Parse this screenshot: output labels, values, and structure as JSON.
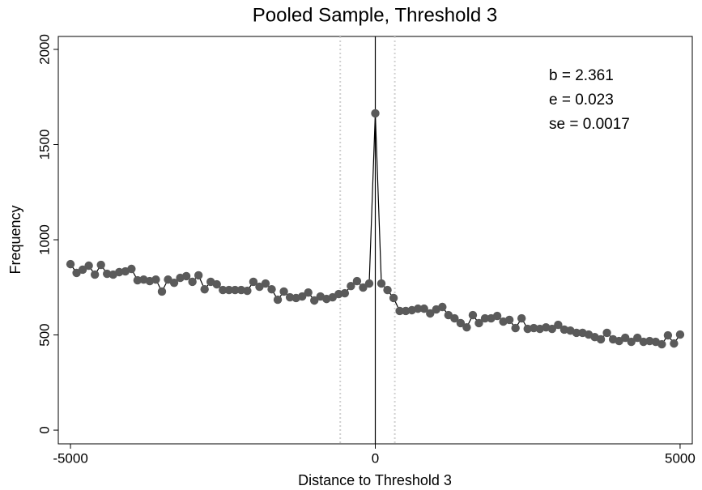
{
  "chart_data": {
    "type": "line",
    "title": "Pooled Sample, Threshold 3",
    "xlabel": "Distance to Threshold 3",
    "ylabel": "Frequency",
    "x": [
      -5000,
      -4900,
      -4800,
      -4700,
      -4600,
      -4500,
      -4400,
      -4300,
      -4200,
      -4100,
      -4000,
      -3900,
      -3800,
      -3700,
      -3600,
      -3500,
      -3400,
      -3300,
      -3200,
      -3100,
      -3000,
      -2900,
      -2800,
      -2700,
      -2600,
      -2500,
      -2400,
      -2300,
      -2200,
      -2100,
      -2000,
      -1900,
      -1800,
      -1700,
      -1600,
      -1500,
      -1400,
      -1300,
      -1200,
      -1100,
      -1000,
      -900,
      -800,
      -700,
      -600,
      -500,
      -400,
      -300,
      -200,
      -100,
      0,
      100,
      200,
      300,
      400,
      500,
      600,
      700,
      800,
      900,
      1000,
      1100,
      1200,
      1300,
      1400,
      1500,
      1600,
      1700,
      1800,
      1900,
      2000,
      2100,
      2200,
      2300,
      2400,
      2500,
      2600,
      2700,
      2800,
      2900,
      3000,
      3100,
      3200,
      3300,
      3400,
      3500,
      3600,
      3700,
      3800,
      3900,
      4000,
      4100,
      4200,
      4300,
      4400,
      4500,
      4600,
      4700,
      4800,
      4900,
      5000
    ],
    "series": [
      {
        "name": "Frequency",
        "color": "#5a5a5a",
        "line_color": "#000000",
        "values": [
          872,
          826,
          843,
          864,
          817,
          868,
          821,
          817,
          830,
          834,
          847,
          787,
          791,
          783,
          791,
          728,
          791,
          774,
          800,
          809,
          779,
          813,
          740,
          779,
          766,
          736,
          736,
          736,
          736,
          732,
          779,
          753,
          770,
          740,
          685,
          728,
          698,
          694,
          702,
          723,
          681,
          702,
          689,
          698,
          715,
          719,
          757,
          783,
          749,
          770,
          1664,
          770,
          736,
          694,
          626,
          626,
          630,
          638,
          638,
          613,
          634,
          647,
          604,
          587,
          562,
          540,
          604,
          562,
          587,
          587,
          600,
          570,
          579,
          536,
          587,
          532,
          536,
          532,
          540,
          532,
          553,
          528,
          523,
          511,
          511,
          502,
          489,
          477,
          511,
          477,
          468,
          485,
          464,
          485,
          464,
          468,
          464,
          451,
          498,
          455,
          502
        ]
      }
    ],
    "xlim": [
      -5200,
      5200
    ],
    "ylim": [
      -72,
      2068
    ],
    "xticks": [
      -5000,
      0,
      5000
    ],
    "yticks": [
      0,
      500,
      1000,
      1500,
      2000
    ],
    "vlines": [
      {
        "x": -575,
        "style": "dotted",
        "color": "#d0d0d0"
      },
      {
        "x": 0,
        "style": "solid",
        "color": "#000000"
      },
      {
        "x": 320,
        "style": "dotted",
        "color": "#d0d0d0"
      }
    ],
    "annotations": [
      "b = 2.361",
      "e = 0.023",
      "se = 0.0017"
    ]
  }
}
